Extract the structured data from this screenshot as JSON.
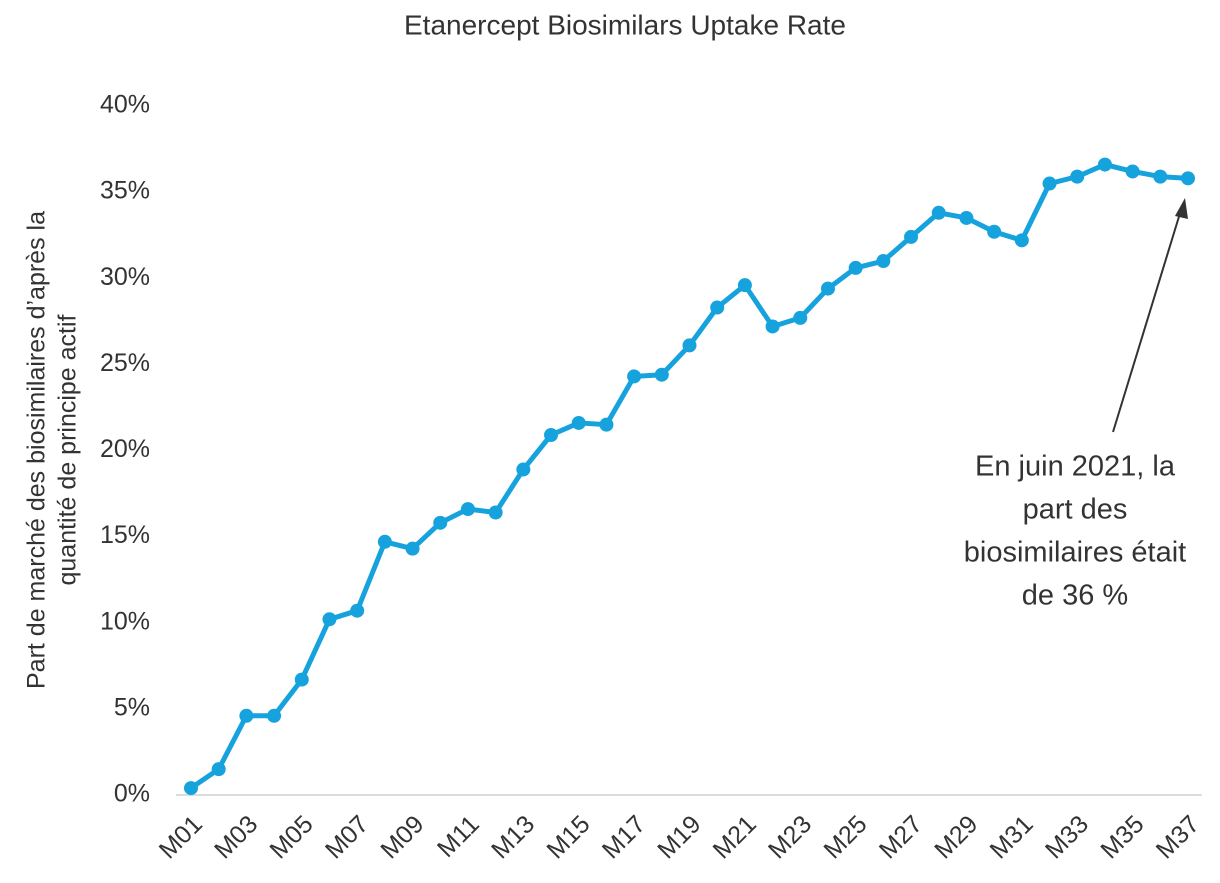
{
  "chart_data": {
    "type": "line",
    "title": "Etanercept Biosimilars Uptake Rate",
    "ylabel": [
      "Part de marché des biosimilaires d’après la",
      "quantité de principe actif"
    ],
    "categories": [
      "M01",
      null,
      "M03",
      null,
      "M05",
      null,
      "M07",
      null,
      "M09",
      null,
      "M11",
      null,
      "M13",
      null,
      "M15",
      null,
      "M17",
      null,
      "M19",
      null,
      "M21",
      null,
      "M23",
      null,
      "M25",
      null,
      "M27",
      null,
      "M29",
      null,
      "M31",
      null,
      "M33",
      null,
      "M35",
      null,
      "M37"
    ],
    "values": [
      0.4,
      1.5,
      4.6,
      4.6,
      6.7,
      10.2,
      10.7,
      14.7,
      14.3,
      15.8,
      16.6,
      16.4,
      18.9,
      20.9,
      21.6,
      21.5,
      24.3,
      24.4,
      26.1,
      28.3,
      29.6,
      27.2,
      27.7,
      29.4,
      30.6,
      31.0,
      32.4,
      33.8,
      33.5,
      32.7,
      32.2,
      35.5,
      35.9,
      36.6,
      36.2,
      35.9,
      35.8
    ],
    "color": "#16a3dd",
    "ylim": [
      0,
      40
    ],
    "yticks": [
      {
        "value": 0,
        "label": "0%"
      },
      {
        "value": 5,
        "label": "5%"
      },
      {
        "value": 10,
        "label": "10%"
      },
      {
        "value": 15,
        "label": "15%"
      },
      {
        "value": 20,
        "label": "20%"
      },
      {
        "value": 25,
        "label": "25%"
      },
      {
        "value": 30,
        "label": "30%"
      },
      {
        "value": 35,
        "label": "35%"
      },
      {
        "value": 40,
        "label": "40%"
      }
    ],
    "annotation": [
      "En juin 2021, la",
      "part des",
      "biosimilaires était",
      "de 36 %"
    ]
  }
}
